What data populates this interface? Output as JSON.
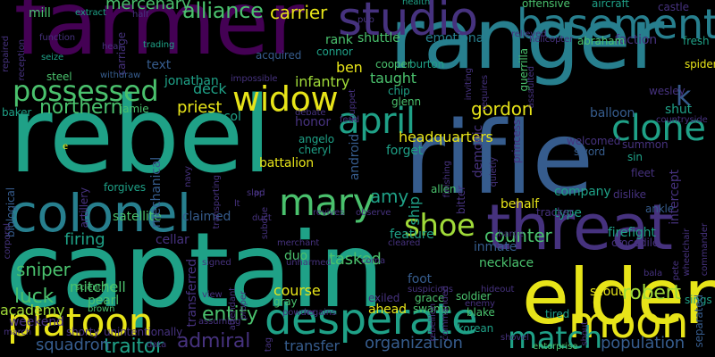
{
  "palette": {
    "yellow": "#e7e419",
    "lime": "#a0da39",
    "green": "#4ac16d",
    "teal": "#1fa187",
    "cyan": "#277f8e",
    "blue": "#365c8d",
    "indigo": "#46327e",
    "purple": "#440154"
  },
  "words": [
    {
      "text": "farmer",
      "color": "purple"
    },
    {
      "text": "ranger",
      "color": "cyan"
    },
    {
      "text": "rebel",
      "color": "teal"
    },
    {
      "text": "rifle",
      "color": "blue"
    },
    {
      "text": "captain",
      "color": "teal"
    },
    {
      "text": "elder",
      "color": "yellow"
    },
    {
      "text": "threat",
      "color": "indigo"
    },
    {
      "text": "colonel",
      "color": "cyan"
    },
    {
      "text": "studio",
      "color": "indigo"
    },
    {
      "text": "basement",
      "color": "cyan"
    },
    {
      "text": "possessed",
      "color": "green"
    },
    {
      "text": "desperate",
      "color": "teal"
    },
    {
      "text": "moon",
      "color": "yellow"
    },
    {
      "text": "platoon",
      "color": "yellow"
    },
    {
      "text": "mary",
      "color": "green"
    },
    {
      "text": "april",
      "color": "teal"
    },
    {
      "text": "widow",
      "color": "yellow"
    },
    {
      "text": "clone",
      "color": "teal"
    },
    {
      "text": "shoe",
      "color": "lime"
    },
    {
      "text": "match",
      "color": "teal"
    },
    {
      "text": "k",
      "color": "blue"
    },
    {
      "text": "alliance",
      "color": "green"
    },
    {
      "text": "carrier",
      "color": "yellow"
    },
    {
      "text": "mercenary",
      "color": "green"
    },
    {
      "text": "northern",
      "color": "green"
    },
    {
      "text": "traitor",
      "color": "teal"
    },
    {
      "text": "admiral",
      "color": "indigo"
    },
    {
      "text": "entity",
      "color": "green"
    },
    {
      "text": "organization",
      "color": "blue"
    },
    {
      "text": "population",
      "color": "blue"
    },
    {
      "text": "robert",
      "color": "lime"
    },
    {
      "text": "counter",
      "color": "green"
    },
    {
      "text": "amy",
      "color": "teal"
    },
    {
      "text": "gordon",
      "color": "yellow"
    },
    {
      "text": "luck",
      "color": "green"
    },
    {
      "text": "sniper",
      "color": "green"
    },
    {
      "text": "tasked",
      "color": "green"
    },
    {
      "text": "firing",
      "color": "teal"
    },
    {
      "text": "course",
      "color": "yellow"
    },
    {
      "text": "mitchell",
      "color": "green"
    },
    {
      "text": "academy",
      "color": "lime"
    },
    {
      "text": "squadron",
      "color": "blue"
    },
    {
      "text": "transfer",
      "color": "blue"
    },
    {
      "text": "battalion",
      "color": "yellow"
    },
    {
      "text": "headquarters",
      "color": "yellow"
    },
    {
      "text": "priest",
      "color": "yellow"
    },
    {
      "text": "deck",
      "color": "teal"
    },
    {
      "text": "jonathan",
      "color": "teal"
    },
    {
      "text": "infantry",
      "color": "lime"
    },
    {
      "text": "ben",
      "color": "yellow"
    },
    {
      "text": "taught",
      "color": "green"
    },
    {
      "text": "shuttle",
      "color": "green"
    },
    {
      "text": "emotional",
      "color": "cyan"
    },
    {
      "text": "rank",
      "color": "green"
    },
    {
      "text": "mill",
      "color": "green"
    },
    {
      "text": "text",
      "color": "blue"
    },
    {
      "text": "company",
      "color": "teal"
    },
    {
      "text": "type",
      "color": "teal"
    },
    {
      "text": "behalf",
      "color": "yellow"
    },
    {
      "text": "firefight",
      "color": "teal"
    },
    {
      "text": "scout",
      "color": "yellow"
    },
    {
      "text": "necklace",
      "color": "green"
    },
    {
      "text": "feature",
      "color": "teal"
    },
    {
      "text": "inmate",
      "color": "blue"
    },
    {
      "text": "forget",
      "color": "teal"
    },
    {
      "text": "duo",
      "color": "green"
    },
    {
      "text": "satellite",
      "color": "green"
    },
    {
      "text": "claimed",
      "color": "blue"
    },
    {
      "text": "cellar",
      "color": "indigo"
    },
    {
      "text": "foot",
      "color": "blue"
    },
    {
      "text": "pearl",
      "color": "green"
    },
    {
      "text": "weekend",
      "color": "indigo"
    },
    {
      "text": "balloon",
      "color": "blue"
    },
    {
      "text": "shut",
      "color": "teal"
    },
    {
      "text": "guerrilla",
      "color": "green"
    },
    {
      "text": "cooper",
      "color": "green"
    },
    {
      "text": "burton",
      "color": "teal"
    },
    {
      "text": "chip",
      "color": "teal"
    },
    {
      "text": "glenn",
      "color": "green"
    },
    {
      "text": "col",
      "color": "teal"
    },
    {
      "text": "honor",
      "color": "indigo"
    },
    {
      "text": "angelo",
      "color": "teal"
    },
    {
      "text": "cheryl",
      "color": "teal"
    },
    {
      "text": "android",
      "color": "blue"
    },
    {
      "text": "ship",
      "color": "teal"
    },
    {
      "text": "allen",
      "color": "green"
    },
    {
      "text": "sword",
      "color": "blue"
    },
    {
      "text": "sin",
      "color": "teal"
    },
    {
      "text": "fleet",
      "color": "indigo"
    },
    {
      "text": "ankle",
      "color": "blue"
    },
    {
      "text": "intercept",
      "color": "indigo"
    },
    {
      "text": "welcomed",
      "color": "indigo"
    },
    {
      "text": "summon",
      "color": "indigo"
    },
    {
      "text": "wesley",
      "color": "indigo"
    },
    {
      "text": "spider",
      "color": "yellow"
    },
    {
      "text": "faction",
      "color": "indigo"
    },
    {
      "text": "castle",
      "color": "indigo"
    },
    {
      "text": "fresh",
      "color": "teal"
    },
    {
      "text": "aircraft",
      "color": "teal"
    },
    {
      "text": "offensive",
      "color": "green"
    },
    {
      "text": "health",
      "color": "teal"
    },
    {
      "text": "abraham",
      "color": "green"
    },
    {
      "text": "princess",
      "color": "indigo"
    },
    {
      "text": "demonic",
      "color": "indigo"
    },
    {
      "text": "bitter",
      "color": "indigo"
    },
    {
      "text": "tracker",
      "color": "indigo"
    },
    {
      "text": "dislike",
      "color": "indigo"
    },
    {
      "text": "crocodile",
      "color": "indigo"
    },
    {
      "text": "biological",
      "color": "blue"
    },
    {
      "text": "artillery",
      "color": "indigo"
    },
    {
      "text": "mechanical",
      "color": "blue"
    },
    {
      "text": "transferred",
      "color": "indigo"
    },
    {
      "text": "scientific",
      "color": "green"
    },
    {
      "text": "brown",
      "color": "green"
    },
    {
      "text": "shorty",
      "color": "indigo"
    },
    {
      "text": "unintentionally",
      "color": "indigo"
    },
    {
      "text": "data",
      "color": "indigo"
    },
    {
      "text": "gray",
      "color": "green"
    },
    {
      "text": "powder",
      "color": "indigo"
    },
    {
      "text": "regains",
      "color": "indigo"
    },
    {
      "text": "exiled",
      "color": "indigo"
    },
    {
      "text": "grace",
      "color": "green"
    },
    {
      "text": "swamp",
      "color": "green"
    },
    {
      "text": "ahead",
      "color": "yellow"
    },
    {
      "text": "soldier",
      "color": "green"
    },
    {
      "text": "korean",
      "color": "teal"
    },
    {
      "text": "blake",
      "color": "green"
    },
    {
      "text": "tired",
      "color": "teal"
    },
    {
      "text": "enemy",
      "color": "indigo"
    },
    {
      "text": "sings",
      "color": "teal"
    },
    {
      "text": "separated",
      "color": "blue"
    },
    {
      "text": "enterprise",
      "color": "green"
    },
    {
      "text": "baker",
      "color": "teal"
    },
    {
      "text": "jamie",
      "color": "green"
    },
    {
      "text": "forgives",
      "color": "teal"
    },
    {
      "text": "carriage",
      "color": "indigo"
    },
    {
      "text": "seize",
      "color": "teal"
    },
    {
      "text": "steel",
      "color": "green"
    },
    {
      "text": "withdraw",
      "color": "blue"
    },
    {
      "text": "acquired",
      "color": "blue"
    },
    {
      "text": "connor",
      "color": "teal"
    },
    {
      "text": "impossible",
      "color": "indigo"
    },
    {
      "text": "trading",
      "color": "teal"
    },
    {
      "text": "extract",
      "color": "teal"
    },
    {
      "text": "function",
      "color": "indigo"
    },
    {
      "text": "reception",
      "color": "indigo"
    },
    {
      "text": "debate",
      "color": "indigo"
    },
    {
      "text": "revives",
      "color": "indigo"
    },
    {
      "text": "observe",
      "color": "indigo"
    },
    {
      "text": "merchant",
      "color": "indigo"
    },
    {
      "text": "unharmed",
      "color": "indigo"
    },
    {
      "text": "signed",
      "color": "indigo"
    },
    {
      "text": "view",
      "color": "indigo"
    },
    {
      "text": "assuming",
      "color": "indigo"
    },
    {
      "text": "march",
      "color": "indigo"
    },
    {
      "text": "corporal",
      "color": "indigo"
    },
    {
      "text": "hear",
      "color": "indigo"
    },
    {
      "text": "half",
      "color": "indigo"
    },
    {
      "text": "pub",
      "color": "indigo"
    },
    {
      "text": "relieved",
      "color": "indigo"
    },
    {
      "text": "helicopter",
      "color": "indigo"
    },
    {
      "text": "inviting",
      "color": "indigo"
    },
    {
      "text": "requires",
      "color": "indigo"
    },
    {
      "text": "assaulted",
      "color": "indigo"
    },
    {
      "text": "coma",
      "color": "indigo"
    },
    {
      "text": "cleared",
      "color": "indigo"
    },
    {
      "text": "suspicious",
      "color": "indigo"
    },
    {
      "text": "hideout",
      "color": "indigo"
    },
    {
      "text": "charge",
      "color": "indigo"
    },
    {
      "text": "commanded",
      "color": "indigo"
    },
    {
      "text": "rebellion",
      "color": "indigo"
    },
    {
      "text": "attendant",
      "color": "indigo"
    },
    {
      "text": "proper",
      "color": "indigo"
    },
    {
      "text": "subdue",
      "color": "indigo"
    },
    {
      "text": "duct",
      "color": "indigo"
    },
    {
      "text": "slap",
      "color": "indigo"
    },
    {
      "text": "transporting",
      "color": "indigo"
    },
    {
      "text": "navy",
      "color": "indigo"
    },
    {
      "text": "finishing",
      "color": "indigo"
    },
    {
      "text": "quietly",
      "color": "indigo"
    },
    {
      "text": "feud",
      "color": "indigo"
    },
    {
      "text": "puppet",
      "color": "indigo"
    },
    {
      "text": "repaired",
      "color": "indigo"
    },
    {
      "text": "shout",
      "color": "indigo"
    },
    {
      "text": "shovel",
      "color": "indigo"
    },
    {
      "text": "bala",
      "color": "indigo"
    },
    {
      "text": "pete",
      "color": "indigo"
    },
    {
      "text": "wheelchair",
      "color": "indigo"
    },
    {
      "text": "commander",
      "color": "indigo"
    },
    {
      "text": "countryside",
      "color": "indigo"
    },
    {
      "text": "tag",
      "color": "indigo"
    },
    {
      "text": "e",
      "color": "yellow"
    },
    {
      "text": "lt",
      "color": "indigo"
    },
    {
      "text": "pd",
      "color": "indigo"
    }
  ]
}
